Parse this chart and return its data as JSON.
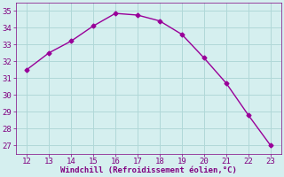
{
  "x": [
    12,
    13,
    14,
    15,
    16,
    17,
    18,
    19,
    20,
    21,
    22,
    23
  ],
  "y": [
    31.5,
    32.5,
    33.2,
    34.1,
    34.85,
    34.75,
    34.4,
    33.6,
    32.2,
    30.7,
    28.8,
    27.0
  ],
  "line_color": "#990099",
  "marker": "D",
  "marker_size": 2.5,
  "bg_color": "#d5efef",
  "grid_color": "#b0d8d8",
  "xlabel": "Windchill (Refroidissement éolien,°C)",
  "xlabel_color": "#800080",
  "xlabel_fontsize": 6.5,
  "tick_color": "#800080",
  "tick_fontsize": 6.5,
  "xlim": [
    11.5,
    23.5
  ],
  "ylim": [
    26.5,
    35.5
  ],
  "xticks": [
    12,
    13,
    14,
    15,
    16,
    17,
    18,
    19,
    20,
    21,
    22,
    23
  ],
  "yticks": [
    27,
    28,
    29,
    30,
    31,
    32,
    33,
    34,
    35
  ],
  "line_width": 1.0
}
